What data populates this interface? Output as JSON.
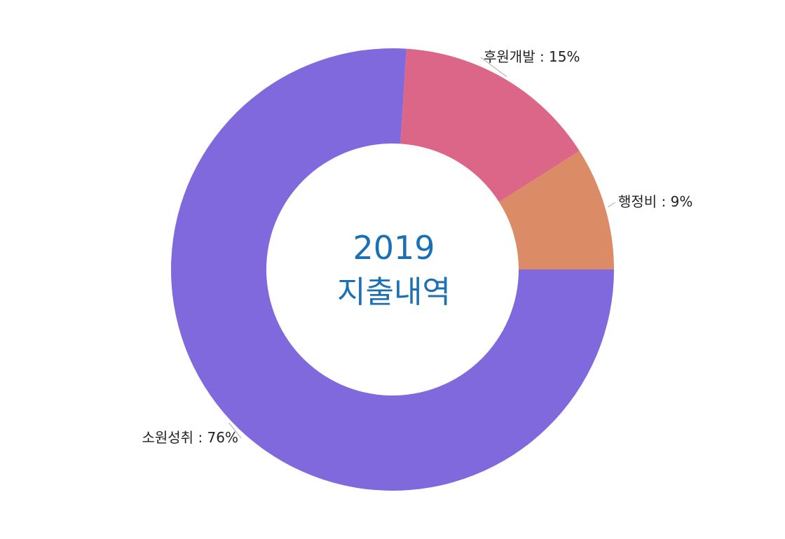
{
  "chart_data": {
    "type": "pie",
    "donut": true,
    "center_text": {
      "line1": "2019",
      "line2": "지출내역"
    },
    "slices": [
      {
        "label": "소원성취",
        "value": 76,
        "color": "#7f69dc",
        "label_text": "소원성취 : 76%"
      },
      {
        "label": "후원개발",
        "value": 15,
        "color": "#dc6688",
        "label_text": "후원개발 : 15%"
      },
      {
        "label": "행정비",
        "value": 9,
        "color": "#dc8b67",
        "label_text": "행정비 : 9%"
      }
    ]
  },
  "colors": {
    "center_text": "#1a6fb5",
    "label_text": "#222222",
    "leader_line": "#aaaaaa"
  }
}
